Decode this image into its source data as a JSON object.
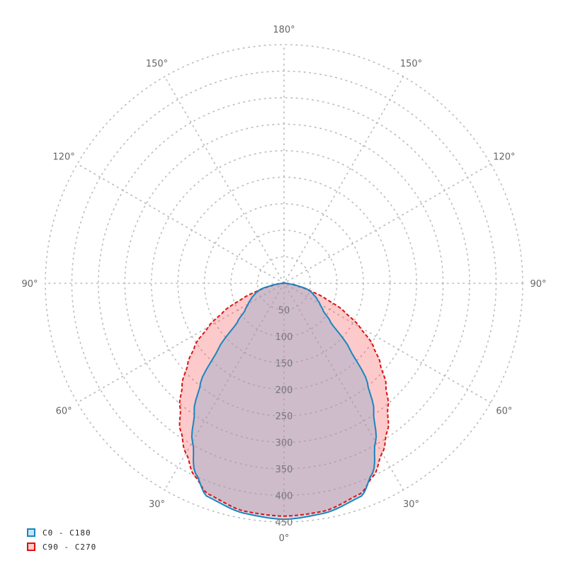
{
  "chart_data": {
    "type": "polar",
    "radial_ticks": [
      50,
      100,
      150,
      200,
      250,
      300,
      350,
      400,
      450
    ],
    "radial_max": 450,
    "angle_ticks": [
      {
        "angle": 0,
        "label": "0°"
      },
      {
        "angle": 30,
        "label": "30°"
      },
      {
        "angle": -30,
        "label": "30°"
      },
      {
        "angle": 60,
        "label": "60°"
      },
      {
        "angle": -60,
        "label": "60°"
      },
      {
        "angle": 90,
        "label": "90°"
      },
      {
        "angle": -90,
        "label": "90°"
      },
      {
        "angle": 120,
        "label": "120°"
      },
      {
        "angle": -120,
        "label": "120°"
      },
      {
        "angle": 150,
        "label": "150°"
      },
      {
        "angle": -150,
        "label": "150°"
      },
      {
        "angle": 180,
        "label": "180°"
      }
    ],
    "grid": true,
    "legend_position": "bottom-left",
    "angles": [
      0,
      10,
      20,
      25,
      30,
      35,
      40,
      45,
      50,
      55,
      60,
      65,
      70,
      75,
      80,
      85,
      90,
      180
    ],
    "series": [
      {
        "name": "C0 - C180",
        "stroke": "#1a85c0",
        "line": "solid",
        "fill": "#c8e4f4",
        "values": [
          445,
          440,
          427,
          395,
          345,
          295,
          245,
          175,
          115,
          90,
          78,
          68,
          58,
          48,
          25,
          8,
          2,
          0
        ]
      },
      {
        "name": "C90 - C270",
        "stroke": "#dd1111",
        "line": "dashed",
        "fill": "#ffcccc",
        "values": [
          439,
          436,
          422,
          400,
          370,
          340,
          305,
          272,
          237,
          205,
          165,
          125,
          82,
          45,
          20,
          8,
          2,
          0
        ]
      }
    ]
  }
}
